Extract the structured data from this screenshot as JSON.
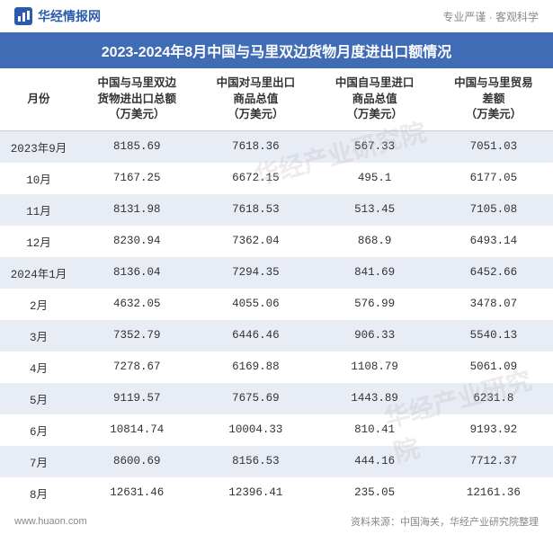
{
  "header": {
    "logo_text": "华经情报网",
    "slogan": "专业严谨 · 客观科学"
  },
  "title": "2023-2024年8月中国与马里双边货物月度进出口额情况",
  "table": {
    "columns": [
      "月份",
      "中国与马里双边\n货物进出口总额\n（万美元）",
      "中国对马里出口\n商品总值\n（万美元）",
      "中国自马里进口\n商品总值\n（万美元）",
      "中国与马里贸易\n差额\n（万美元）"
    ],
    "rows": [
      [
        "2023年9月",
        "8185.69",
        "7618.36",
        "567.33",
        "7051.03"
      ],
      [
        "10月",
        "7167.25",
        "6672.15",
        "495.1",
        "6177.05"
      ],
      [
        "11月",
        "8131.98",
        "7618.53",
        "513.45",
        "7105.08"
      ],
      [
        "12月",
        "8230.94",
        "7362.04",
        "868.9",
        "6493.14"
      ],
      [
        "2024年1月",
        "8136.04",
        "7294.35",
        "841.69",
        "6452.66"
      ],
      [
        "2月",
        "4632.05",
        "4055.06",
        "576.99",
        "3478.07"
      ],
      [
        "3月",
        "7352.79",
        "6446.46",
        "906.33",
        "5540.13"
      ],
      [
        "4月",
        "7278.67",
        "6169.88",
        "1108.79",
        "5061.09"
      ],
      [
        "5月",
        "9119.57",
        "7675.69",
        "1443.89",
        "6231.8"
      ],
      [
        "6月",
        "10814.74",
        "10004.33",
        "810.41",
        "9193.92"
      ],
      [
        "7月",
        "8600.69",
        "8156.53",
        "444.16",
        "7712.37"
      ],
      [
        "8月",
        "12631.46",
        "12396.41",
        "235.05",
        "12161.36"
      ]
    ]
  },
  "footer": {
    "website": "www.huaon.com",
    "source": "资料来源：中国海关，华经产业研究院整理"
  },
  "watermark": "华经产业研究院",
  "styling": {
    "title_bg": "#3f6cb5",
    "title_color": "#ffffff",
    "row_odd_bg": "#e8ecf4",
    "row_even_bg": "#ffffff",
    "logo_color": "#2b5cab",
    "text_color": "#333333",
    "muted_color": "#888888"
  }
}
